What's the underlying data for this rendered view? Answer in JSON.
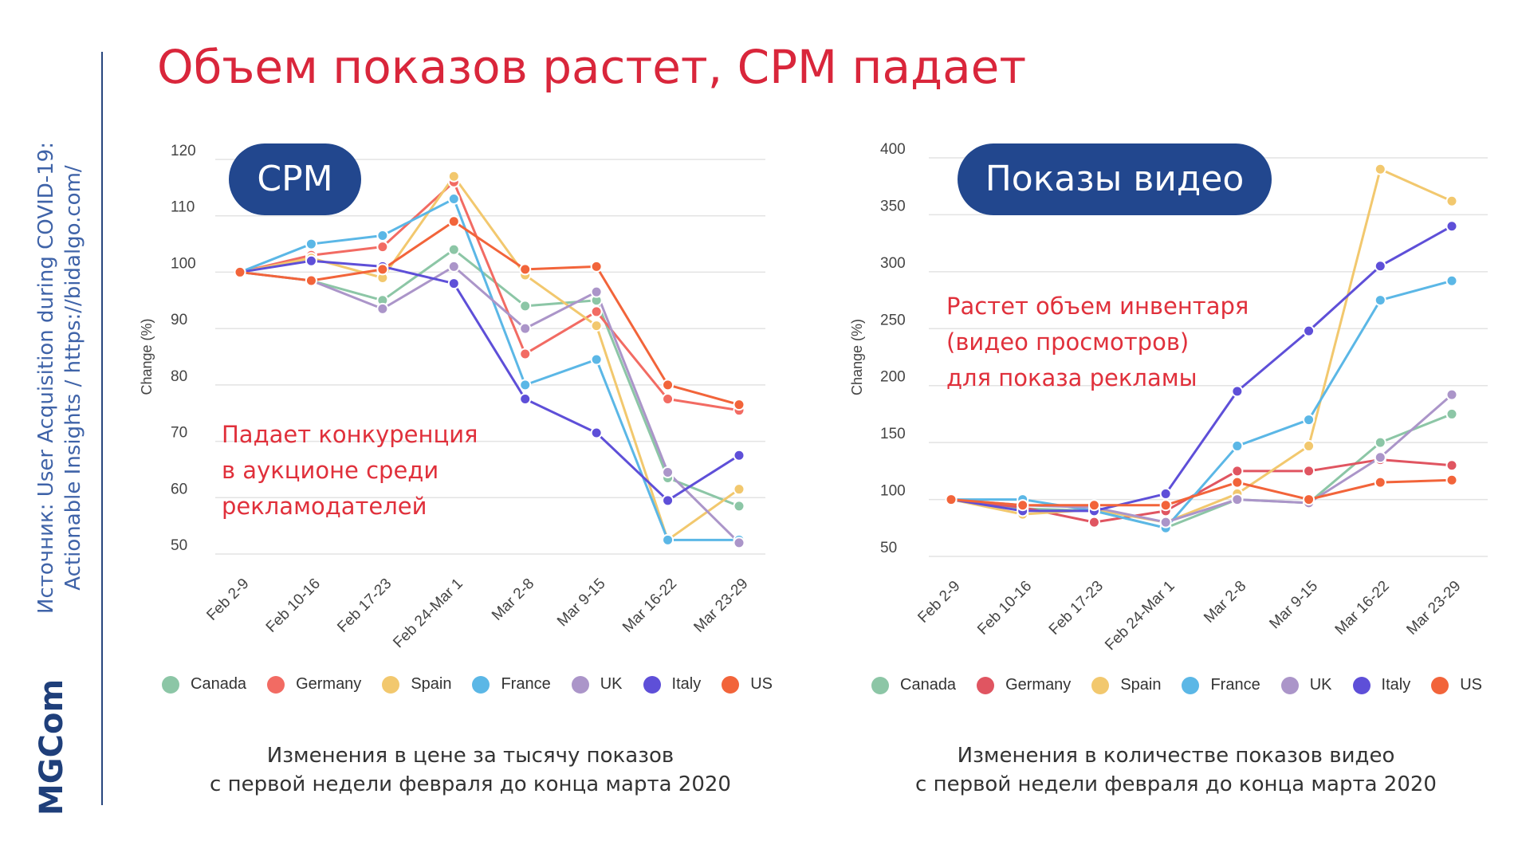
{
  "title": "Объем показов растет, CPM падает",
  "source": {
    "line1": "Источник: User Acquisition during COVID-19:",
    "line2": "Actionable Insights / https://bidalgo.com/"
  },
  "logo": "MGCom",
  "chart_data": [
    {
      "type": "line",
      "title": "CPM",
      "ylabel": "Change (%)",
      "xlabel": "",
      "ylim": [
        50,
        120
      ],
      "yticks": [
        50,
        60,
        70,
        80,
        90,
        100,
        110,
        120
      ],
      "grid": true,
      "legend_position": "bottom",
      "categories": [
        "Feb 2-9",
        "Feb 10-16",
        "Feb 17-23",
        "Feb 24-Mar 1",
        "Mar 2-8",
        "Mar 9-15",
        "Mar 16-22",
        "Mar 23-29"
      ],
      "annotation": [
        "Падает конкуренция",
        "в аукционе среди",
        "рекламодателей"
      ],
      "caption": [
        "Изменения в цене за тысячу показов",
        "с первой недели февраля до конца марта 2020"
      ],
      "series": [
        {
          "name": "Canada",
          "color": "#8cc6a6",
          "values": [
            100,
            98.5,
            95,
            104,
            94,
            95,
            63.5,
            58.5
          ]
        },
        {
          "name": "Germany",
          "color": "#f26b63",
          "values": [
            100,
            103,
            104.5,
            116,
            85.5,
            93,
            77.5,
            75.5
          ]
        },
        {
          "name": "Spain",
          "color": "#f2c86e",
          "values": [
            100,
            102.5,
            99,
            117,
            99.5,
            90.5,
            52.5,
            61.5
          ]
        },
        {
          "name": "France",
          "color": "#5bb7e6",
          "values": [
            100,
            105,
            106.5,
            113,
            80,
            84.5,
            52.5,
            52.5
          ]
        },
        {
          "name": "UK",
          "color": "#ab95c9",
          "values": [
            100,
            98.5,
            93.5,
            101,
            90,
            96.5,
            64.5,
            52
          ]
        },
        {
          "name": "Italy",
          "color": "#5e4fd8",
          "values": [
            100,
            102,
            101,
            98,
            77.5,
            71.5,
            59.5,
            67.5
          ]
        },
        {
          "name": "US",
          "color": "#f2643a",
          "values": [
            100,
            98.5,
            100.5,
            109,
            100.5,
            101,
            80,
            76.5
          ]
        }
      ]
    },
    {
      "type": "line",
      "title": "Показы видео",
      "ylabel": "Change (%)",
      "xlabel": "",
      "ylim": [
        50,
        400
      ],
      "yticks": [
        50,
        100,
        150,
        200,
        250,
        300,
        350,
        400
      ],
      "grid": true,
      "legend_position": "bottom",
      "categories": [
        "Feb 2-9",
        "Feb 10-16",
        "Feb 17-23",
        "Feb 24-Mar 1",
        "Mar 2-8",
        "Mar 9-15",
        "Mar 16-22",
        "Mar 23-29"
      ],
      "annotation": [
        "Растет объем инвентаря",
        "(видео просмотров)",
        "для показа рекламы"
      ],
      "caption": [
        "Изменения в количестве показов видео",
        "с первой недели февраля до конца марта 2020"
      ],
      "series": [
        {
          "name": "Canada",
          "color": "#8cc6a6",
          "values": [
            100,
            92,
            90,
            75,
            100,
            97,
            150,
            175
          ]
        },
        {
          "name": "Germany",
          "color": "#e05561",
          "values": [
            100,
            93,
            80,
            90,
            125,
            125,
            135,
            130
          ]
        },
        {
          "name": "Spain",
          "color": "#f2c86e",
          "values": [
            100,
            87,
            91,
            80,
            105,
            147,
            390,
            362
          ]
        },
        {
          "name": "France",
          "color": "#5bb7e6",
          "values": [
            100,
            100,
            90,
            75,
            147,
            170,
            275,
            292
          ]
        },
        {
          "name": "UK",
          "color": "#ab95c9",
          "values": [
            100,
            95,
            93,
            80,
            100,
            97,
            137,
            192
          ]
        },
        {
          "name": "Italy",
          "color": "#5e4fd8",
          "values": [
            100,
            90,
            90,
            105,
            195,
            248,
            305,
            340
          ]
        },
        {
          "name": "US",
          "color": "#f2643a",
          "values": [
            100,
            95,
            95,
            95,
            115,
            100,
            115,
            117
          ]
        }
      ]
    }
  ]
}
